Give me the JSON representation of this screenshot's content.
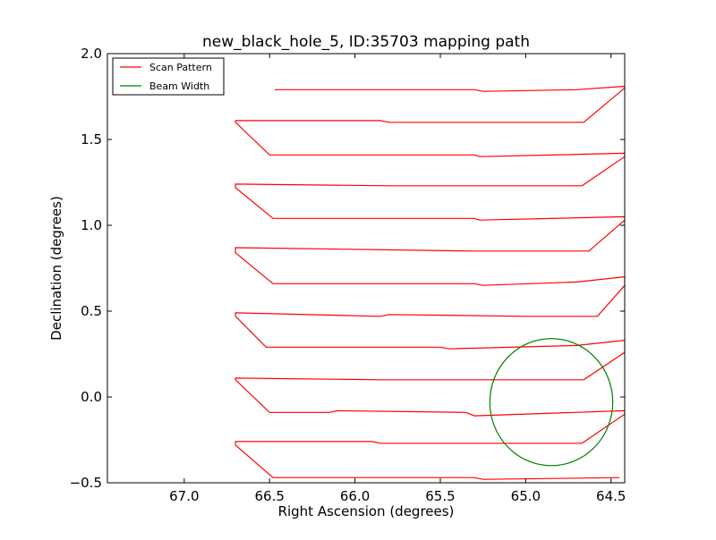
{
  "chart_data": {
    "type": "line",
    "title": "new_black_hole_5, ID:35703 mapping path",
    "xlabel": "Right Ascension (degrees)",
    "ylabel": "Declination (degrees)",
    "xlim": [
      67.45,
      64.42
    ],
    "ylim": [
      -0.5,
      2.0
    ],
    "x_inverted": true,
    "xticks": [
      67.0,
      66.5,
      66.0,
      65.5,
      65.0,
      64.5
    ],
    "xtick_labels": [
      "67.0",
      "66.5",
      "66.0",
      "65.5",
      "65.0",
      "64.5"
    ],
    "yticks": [
      -0.5,
      0.0,
      0.5,
      1.0,
      1.5,
      2.0
    ],
    "ytick_labels": [
      "−0.5",
      "0.0",
      "0.5",
      "1.0",
      "1.5",
      "2.0"
    ],
    "grid": false,
    "legend_position": "top-left",
    "series": [
      {
        "name": "Scan Pattern",
        "color": "#ff0000",
        "points": [
          [
            66.47,
            1.79
          ],
          [
            65.3,
            1.79
          ],
          [
            65.25,
            1.78
          ],
          [
            64.7,
            1.79
          ],
          [
            64.42,
            1.81
          ],
          [
            64.42,
            1.8
          ],
          [
            64.66,
            1.6
          ],
          [
            65.2,
            1.6
          ],
          [
            65.8,
            1.6
          ],
          [
            65.85,
            1.61
          ],
          [
            66.7,
            1.61
          ],
          [
            66.7,
            1.6
          ],
          [
            66.5,
            1.41
          ],
          [
            65.3,
            1.41
          ],
          [
            65.27,
            1.4
          ],
          [
            64.42,
            1.42
          ],
          [
            64.42,
            1.4
          ],
          [
            64.67,
            1.23
          ],
          [
            65.8,
            1.23
          ],
          [
            66.7,
            1.24
          ],
          [
            66.7,
            1.22
          ],
          [
            66.48,
            1.04
          ],
          [
            65.3,
            1.04
          ],
          [
            65.27,
            1.03
          ],
          [
            64.42,
            1.05
          ],
          [
            64.42,
            1.03
          ],
          [
            64.63,
            0.85
          ],
          [
            65.3,
            0.85
          ],
          [
            66.7,
            0.87
          ],
          [
            66.7,
            0.84
          ],
          [
            66.48,
            0.66
          ],
          [
            65.3,
            0.66
          ],
          [
            65.25,
            0.65
          ],
          [
            64.7,
            0.67
          ],
          [
            64.42,
            0.7
          ],
          [
            64.42,
            0.65
          ],
          [
            64.58,
            0.47
          ],
          [
            65.0,
            0.47
          ],
          [
            65.8,
            0.48
          ],
          [
            65.85,
            0.47
          ],
          [
            66.7,
            0.49
          ],
          [
            66.7,
            0.47
          ],
          [
            66.52,
            0.29
          ],
          [
            65.5,
            0.29
          ],
          [
            65.45,
            0.28
          ],
          [
            64.7,
            0.3
          ],
          [
            64.42,
            0.33
          ],
          [
            64.42,
            0.26
          ],
          [
            64.66,
            0.1
          ],
          [
            65.0,
            0.1
          ],
          [
            65.85,
            0.1
          ],
          [
            66.7,
            0.11
          ],
          [
            66.7,
            0.1
          ],
          [
            66.5,
            -0.09
          ],
          [
            66.15,
            -0.09
          ],
          [
            66.1,
            -0.08
          ],
          [
            65.35,
            -0.09
          ],
          [
            65.3,
            -0.11
          ],
          [
            64.42,
            -0.08
          ],
          [
            64.42,
            -0.1
          ],
          [
            64.67,
            -0.27
          ],
          [
            65.85,
            -0.27
          ],
          [
            65.9,
            -0.26
          ],
          [
            66.7,
            -0.26
          ],
          [
            66.7,
            -0.28
          ],
          [
            66.48,
            -0.47
          ],
          [
            65.3,
            -0.47
          ],
          [
            65.25,
            -0.48
          ],
          [
            64.45,
            -0.47
          ]
        ]
      },
      {
        "name": "Beam Width",
        "color": "#008000",
        "circle": {
          "center": [
            64.85,
            -0.03
          ],
          "radius_x": 0.36,
          "radius_y": 0.37
        }
      }
    ]
  }
}
